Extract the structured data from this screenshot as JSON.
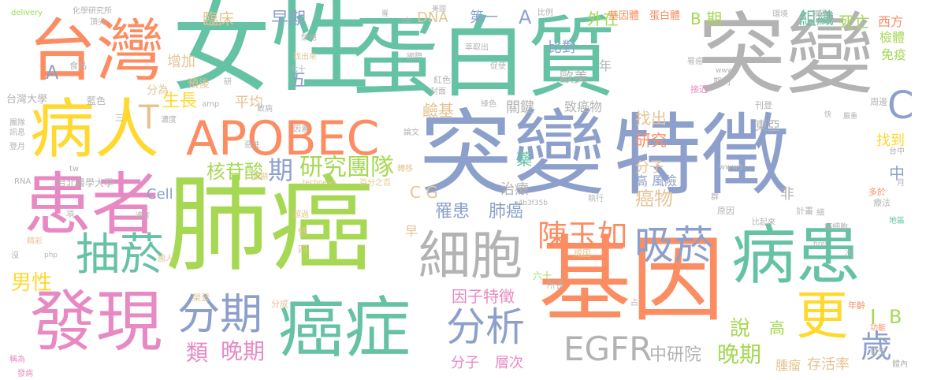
{
  "palette": {
    "teal": "#66c2a5",
    "orange": "#fc8d62",
    "blue": "#8da0cb",
    "pink": "#e78ac3",
    "green": "#a6d854",
    "yellow": "#ffd92f",
    "tan": "#e5c494",
    "gray": "#b3b3b3"
  },
  "words": [
    {
      "text": "女性",
      "color": "#66c2a5"
    },
    {
      "text": "蛋白質",
      "color": "#66c2a5"
    },
    {
      "text": "突變",
      "color": "#b3b3b3"
    },
    {
      "text": "台灣",
      "color": "#fc8d62"
    },
    {
      "text": "突變",
      "color": "#8da0cb"
    },
    {
      "text": "特徵",
      "color": "#8da0cb"
    },
    {
      "text": "肺癌",
      "color": "#a6d854"
    },
    {
      "text": "基因",
      "color": "#fc8d62"
    },
    {
      "text": "患者",
      "color": "#e78ac3"
    },
    {
      "text": "病人",
      "color": "#ffd92f"
    },
    {
      "text": "APOBEC",
      "color": "#fc8d62"
    },
    {
      "text": "發現",
      "color": "#e78ac3"
    },
    {
      "text": "癌症",
      "color": "#66c2a5"
    },
    {
      "text": "病患",
      "color": "#66c2a5"
    },
    {
      "text": "細胞",
      "color": "#b3b3b3"
    },
    {
      "text": "分期",
      "color": "#8da0cb"
    },
    {
      "text": "吸菸",
      "color": "#8da0cb"
    },
    {
      "text": "抽菸",
      "color": "#66c2a5"
    },
    {
      "text": "陳玉如",
      "color": "#fc8d62"
    },
    {
      "text": "EGFR",
      "color": "#b3b3b3"
    },
    {
      "text": "分析",
      "color": "#8da0cb"
    },
    {
      "text": "更",
      "color": "#ffd92f"
    },
    {
      "text": "歲",
      "color": "#8da0cb"
    },
    {
      "text": "C",
      "color": "#8da0cb"
    },
    {
      "text": "研究",
      "color": "#a6d854"
    },
    {
      "text": "團隊",
      "color": "#a6d854"
    },
    {
      "text": "核苷酸",
      "color": "#a6d854"
    },
    {
      "text": "期",
      "color": "#8da0cb"
    },
    {
      "text": "晚期",
      "color": "#e78ac3"
    },
    {
      "text": "晚期",
      "color": "#a6d854"
    },
    {
      "text": "類",
      "color": "#e78ac3"
    },
    {
      "text": "男性",
      "color": "#ffd92f"
    },
    {
      "text": "罹患",
      "color": "#8da0cb"
    },
    {
      "text": "肺癌",
      "color": "#8da0cb"
    },
    {
      "text": "因子特徵",
      "color": "#e78ac3"
    },
    {
      "text": "分子",
      "color": "#e78ac3"
    },
    {
      "text": "層次",
      "color": "#e78ac3"
    },
    {
      "text": "中研院",
      "color": "#b3b3b3"
    },
    {
      "text": "腫瘤",
      "color": "#e5c494"
    },
    {
      "text": "存活率",
      "color": "#e5c494"
    },
    {
      "text": "說",
      "color": "#a6d854"
    },
    {
      "text": "高",
      "color": "#a6d854"
    },
    {
      "text": "B",
      "color": "#a6d854"
    },
    {
      "text": "I",
      "color": "#a6d854"
    },
    {
      "text": "臨床",
      "color": "#e5c494"
    },
    {
      "text": "早期",
      "color": "#8da0cb"
    },
    {
      "text": "DNA",
      "color": "#e5c494"
    },
    {
      "text": "第一",
      "color": "#8da0cb"
    },
    {
      "text": "A",
      "color": "#8da0cb"
    },
    {
      "text": "外在",
      "color": "#a6d854"
    },
    {
      "text": "組織",
      "color": "#66c2a5"
    },
    {
      "text": "死亡",
      "color": "#a6d854"
    },
    {
      "text": "西方",
      "color": "#fc8d62"
    },
    {
      "text": "檢體",
      "color": "#a6d854"
    },
    {
      "text": "免疫",
      "color": "#a6d854"
    },
    {
      "text": "B 期",
      "color": "#a6d854"
    },
    {
      "text": "比對",
      "color": "#8da0cb"
    },
    {
      "text": "歐美",
      "color": "#b3b3b3"
    },
    {
      "text": "年",
      "color": "#b3b3b3"
    },
    {
      "text": "致癌物",
      "color": "#b3b3b3"
    },
    {
      "text": "東亞",
      "color": "#b3b3b3"
    },
    {
      "text": "找出",
      "color": "#e5c494"
    },
    {
      "text": "研究",
      "color": "#fc8d62"
    },
    {
      "text": "找到",
      "color": "#ffd92f"
    },
    {
      "text": "分子",
      "color": "#e5c494"
    },
    {
      "text": "高 風險",
      "color": "#8da0cb"
    },
    {
      "text": "中",
      "color": "#8da0cb"
    },
    {
      "text": "癌物",
      "color": "#e5c494"
    },
    {
      "text": "平均",
      "color": "#e5c494"
    },
    {
      "text": "生長",
      "color": "#ffd92f"
    },
    {
      "text": "增加",
      "color": "#e5c494"
    },
    {
      "text": "預後",
      "color": "#e5c494"
    },
    {
      "text": "五",
      "color": "#8da0cb"
    },
    {
      "text": "T",
      "color": "#e5c494"
    },
    {
      "text": "Cell",
      "color": "#8da0cb"
    },
    {
      "text": "C G",
      "color": "#e5c494"
    },
    {
      "text": "治療",
      "color": "#b3b3b3"
    },
    {
      "text": "非",
      "color": "#b3b3b3"
    },
    {
      "text": "關鍵",
      "color": "#b3b3b3"
    },
    {
      "text": "鹼基",
      "color": "#e5c494"
    },
    {
      "text": "藥",
      "color": "#66c2a5"
    },
    {
      "text": "A",
      "color": "#8da0cb"
    },
    {
      "text": "基因體",
      "color": "#fc8d62"
    },
    {
      "text": "蛋白體",
      "color": "#fc8d62"
    },
    {
      "text": "台灣大學",
      "color": "#b3b3b3"
    },
    {
      "text": "台北醫學大學",
      "color": "#b3b3b3"
    },
    {
      "text": "delivery",
      "color": "#a6d854"
    },
    {
      "text": "化學研究所",
      "color": "#b3b3b3"
    },
    {
      "text": "頂尖",
      "color": "#b3b3b3"
    },
    {
      "text": "分為",
      "color": "#e5c494"
    },
    {
      "text": "藍色",
      "color": "#b3b3b3"
    },
    {
      "text": "食品",
      "color": "#b3b3b3"
    },
    {
      "text": "研",
      "color": "#b3b3b3"
    },
    {
      "text": "期刊",
      "color": "#b3b3b3"
    },
    {
      "text": "刊登",
      "color": "#b3b3b3"
    },
    {
      "text": "接近",
      "color": "#e78ac3"
    },
    {
      "text": "周邊",
      "color": "#b3b3b3"
    },
    {
      "text": "六十",
      "color": "#a6d854"
    },
    {
      "text": "原因",
      "color": "#b3b3b3"
    },
    {
      "text": "計畫",
      "color": "#b3b3b3"
    },
    {
      "text": "療法",
      "color": "#b3b3b3"
    },
    {
      "text": "多於",
      "color": "#fc8d62"
    },
    {
      "text": "地區",
      "color": "#66c2a5"
    },
    {
      "text": "年齡",
      "color": "#fc8d62"
    },
    {
      "text": "功能",
      "color": "#fc8d62"
    },
    {
      "text": "發生",
      "color": "#b3b3b3"
    },
    {
      "text": "體內",
      "color": "#b3b3b3"
    },
    {
      "text": "所長",
      "color": "#b3b3b3"
    },
    {
      "text": "成因",
      "color": "#e5c494"
    },
    {
      "text": "分成",
      "color": "#e5c494"
    },
    {
      "text": "榮登",
      "color": "#e5c494"
    },
    {
      "text": "國人",
      "color": "#e5c494"
    },
    {
      "text": "精彩",
      "color": "#e5c494"
    },
    {
      "text": "稱為",
      "color": "#e78ac3"
    },
    {
      "text": "發病",
      "color": "#e78ac3"
    },
    {
      "text": "早",
      "color": "#e5c494"
    },
    {
      "text": "四",
      "color": "#e5c494"
    },
    {
      "text": "低",
      "color": "#e5c494"
    },
    {
      "text": "超過",
      "color": "#e5c494"
    },
    {
      "text": "當期",
      "color": "#e5c494"
    },
    {
      "text": "百分之百",
      "color": "#e5c494"
    },
    {
      "text": "technews",
      "color": "#e5c494"
    },
    {
      "text": "轉移",
      "color": "#e5c494"
    },
    {
      "text": "論文",
      "color": "#b3b3b3"
    },
    {
      "text": "紅色",
      "color": "#b3b3b3"
    },
    {
      "text": "綠色",
      "color": "#b3b3b3"
    },
    {
      "text": "封面",
      "color": "#b3b3b3"
    },
    {
      "text": "萃取出",
      "color": "#b3b3b3"
    },
    {
      "text": "促使",
      "color": "#b3b3b3"
    },
    {
      "text": "找出來",
      "color": "#e5c494"
    },
    {
      "text": "國際",
      "color": "#b3b3b3"
    },
    {
      "text": "環境",
      "color": "#b3b3b3"
    },
    {
      "text": "領導",
      "color": "#b3b3b3"
    },
    {
      "text": "細",
      "color": "#b3b3b3"
    },
    {
      "text": "癌細胞",
      "color": "#b3b3b3"
    },
    {
      "text": "比起來",
      "color": "#b3b3b3"
    },
    {
      "text": "占",
      "color": "#b3b3b3"
    },
    {
      "text": "比例",
      "color": "#b3b3b3"
    },
    {
      "text": "登月",
      "color": "#b3b3b3"
    },
    {
      "text": "團隊",
      "color": "#b3b3b3"
    },
    {
      "text": "訊息",
      "color": "#b3b3b3"
    },
    {
      "text": "濃度",
      "color": "#b3b3b3"
    },
    {
      "text": "致病",
      "color": "#b3b3b3"
    },
    {
      "text": "惡性",
      "color": "#b3b3b3"
    },
    {
      "text": "因素",
      "color": "#b3b3b3"
    },
    {
      "text": "amp",
      "color": "#b3b3b3"
    },
    {
      "text": "RNA",
      "color": "#b3b3b3"
    },
    {
      "text": "tw",
      "color": "#b3b3b3"
    },
    {
      "text": "php",
      "color": "#b3b3b3"
    },
    {
      "text": "www",
      "color": "#b3b3b3"
    },
    {
      "text": "www5",
      "color": "#b3b3b3"
    },
    {
      "text": "href",
      "color": "#b3b3b3"
    },
    {
      "text": "a4b3f35b",
      "color": "#b3b3b3"
    },
    {
      "text": "cb",
      "color": "#b3b3b3"
    },
    {
      "text": "台中",
      "color": "#b3b3b3"
    },
    {
      "text": "執行",
      "color": "#b3b3b3"
    },
    {
      "text": "群",
      "color": "#b3b3b3"
    },
    {
      "text": "七十",
      "color": "#b3b3b3"
    },
    {
      "text": "榮總",
      "color": "#b3b3b3"
    },
    {
      "text": "罹癌",
      "color": "#b3b3b3"
    },
    {
      "text": "次",
      "color": "#b3b3b3"
    },
    {
      "text": "三",
      "color": "#b3b3b3"
    },
    {
      "text": "月",
      "color": "#b3b3b3"
    },
    {
      "text": "項",
      "color": "#b3b3b3"
    },
    {
      "text": "沒",
      "color": "#b3b3b3"
    },
    {
      "text": "速度",
      "color": "#b3b3b3"
    },
    {
      "text": "嚴重",
      "color": "#b3b3b3"
    },
    {
      "text": "快",
      "color": "#b3b3b3"
    },
    {
      "text": "罹",
      "color": "#b3b3b3"
    },
    {
      "text": "美國",
      "color": "#b3b3b3"
    }
  ]
}
